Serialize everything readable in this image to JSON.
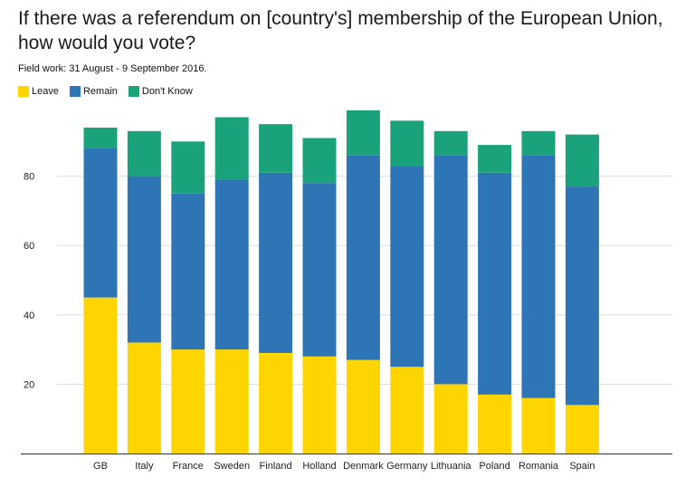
{
  "chart_data": {
    "type": "bar",
    "stacked": true,
    "title": "If there was a referendum on [country's] membership of the European Union, how would you vote?",
    "subtitle": "Field work: 31 August - 9 September 2016.",
    "categories": [
      "GB",
      "Italy",
      "France",
      "Sweden",
      "Finland",
      "Holland",
      "Denmark",
      "Germany",
      "Lithuania",
      "Poland",
      "Romania",
      "Spain"
    ],
    "series": [
      {
        "name": "Leave",
        "color": "#ffd500",
        "values": [
          45,
          32,
          30,
          30,
          29,
          28,
          27,
          25,
          20,
          17,
          16,
          14
        ]
      },
      {
        "name": "Remain",
        "color": "#2e75b6",
        "values": [
          43,
          48,
          45,
          49,
          52,
          50,
          59,
          58,
          66,
          64,
          70,
          63
        ]
      },
      {
        "name": "Don't Know",
        "color": "#1aa37a",
        "values": [
          6,
          13,
          15,
          18,
          14,
          13,
          13,
          13,
          7,
          8,
          7,
          15
        ]
      }
    ],
    "yticks": [
      20,
      40,
      60,
      80
    ],
    "ylim": [
      0,
      100
    ],
    "xlabel": "",
    "ylabel": "",
    "legend_position": "top-left"
  }
}
